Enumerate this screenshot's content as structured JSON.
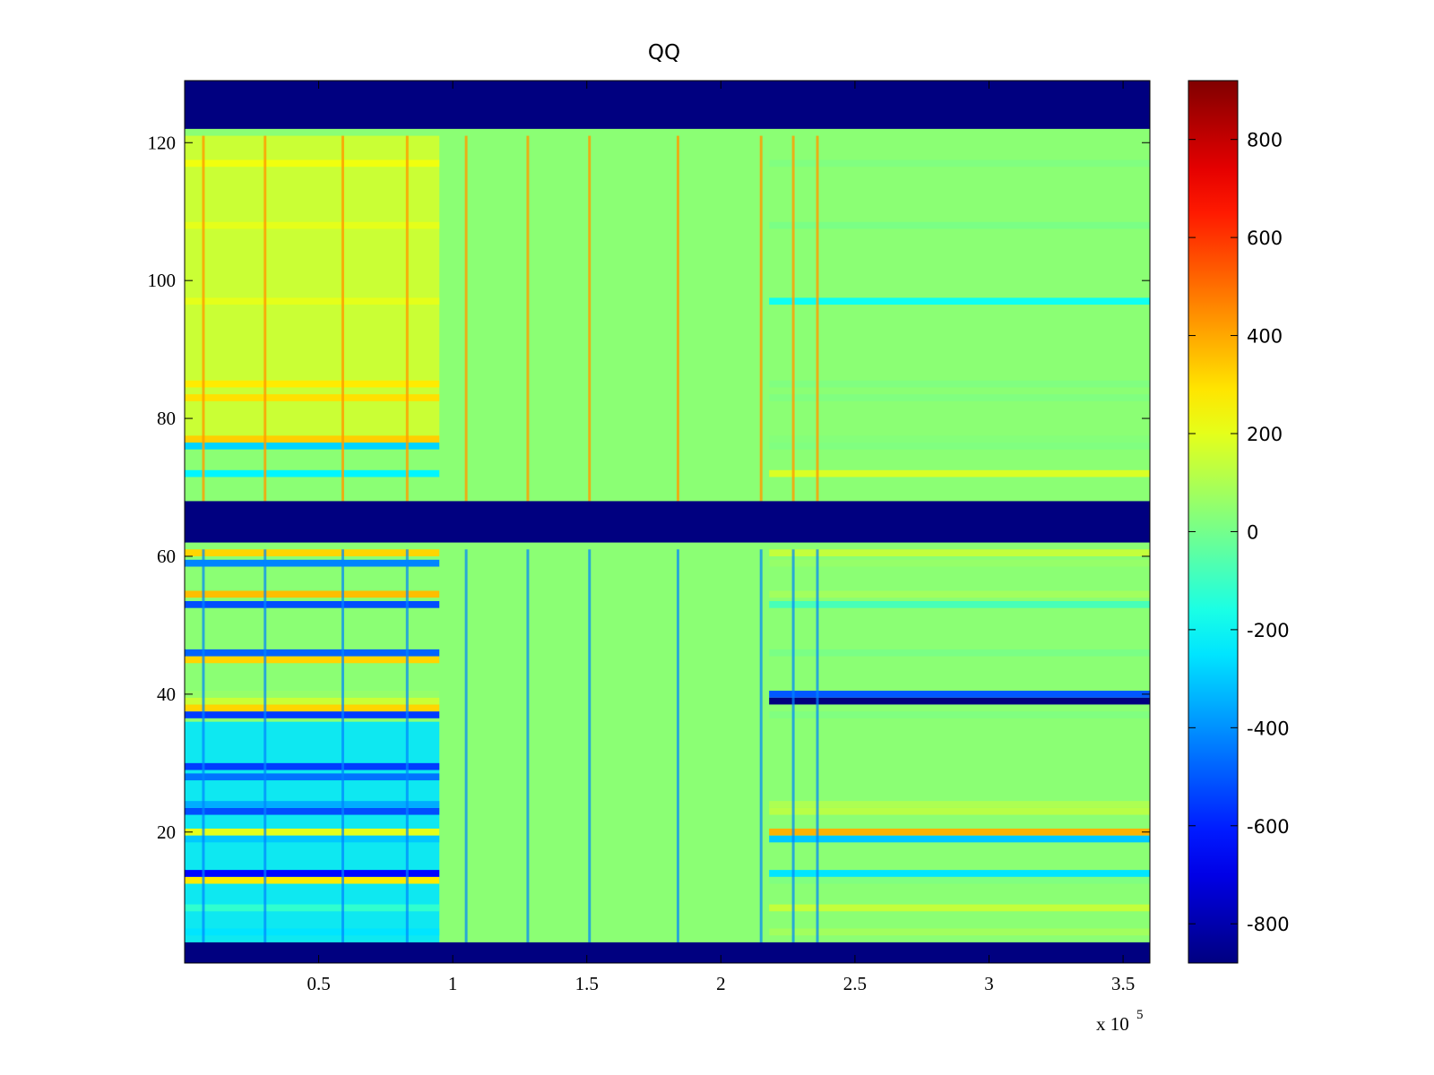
{
  "chart_data": {
    "type": "heatmap",
    "title": "QQ",
    "xlabel": "",
    "ylabel": "",
    "x_multiplier": "x 10",
    "x_multiplier_exponent": "5",
    "xlim": [
      0,
      360000
    ],
    "ylim": [
      1,
      129
    ],
    "x_ticks": [
      50000,
      100000,
      150000,
      200000,
      250000,
      300000,
      350000
    ],
    "x_tick_labels": [
      "0.5",
      "1",
      "1.5",
      "2",
      "2.5",
      "3",
      "3.5"
    ],
    "y_ticks": [
      20,
      40,
      60,
      80,
      100,
      120
    ],
    "y_tick_labels": [
      "20",
      "40",
      "60",
      "80",
      "100",
      "120"
    ],
    "colorbar": {
      "range": [
        -880,
        920
      ],
      "ticks": [
        -800,
        -600,
        -400,
        -200,
        0,
        200,
        400,
        600,
        800
      ],
      "tick_labels": [
        "-800",
        "-600",
        "-400",
        "-200",
        "0",
        "200",
        "400",
        "600",
        "800"
      ],
      "colormap": "jet"
    },
    "regions": {
      "empty_bands_y": [
        [
          1,
          4
        ],
        [
          62,
          68
        ],
        [
          122,
          129
        ]
      ],
      "rows": [
        {
          "y": 5.5,
          "early": -250,
          "late": 80
        },
        {
          "y": 9,
          "early": -120,
          "late": 140
        },
        {
          "y": 13,
          "early": 280,
          "late": 20
        },
        {
          "y": 14,
          "early": -650,
          "late": -250
        },
        {
          "y": 19,
          "early": -300,
          "late": -300
        },
        {
          "y": 20,
          "early": 200,
          "late": 380
        },
        {
          "y": 23,
          "early": -520,
          "late": 120
        },
        {
          "y": 24,
          "early": -350,
          "late": 100
        },
        {
          "y": 28,
          "early": -450,
          "late": 40
        },
        {
          "y": 29.5,
          "early": -550,
          "late": 40
        },
        {
          "y": 37,
          "early": -550,
          "late": 20
        },
        {
          "y": 38,
          "early": 320,
          "late": 40
        },
        {
          "y": 39,
          "early": 150,
          "late": -880
        },
        {
          "y": 40,
          "early": 60,
          "late": -500
        },
        {
          "y": 45,
          "early": 320,
          "late": 40
        },
        {
          "y": 46,
          "early": -480,
          "late": 10
        },
        {
          "y": 53,
          "early": -520,
          "late": -80
        },
        {
          "y": 54.5,
          "early": 360,
          "late": 80
        },
        {
          "y": 59,
          "early": -420,
          "late": 60
        },
        {
          "y": 60.5,
          "early": 320,
          "late": 140
        },
        {
          "y": 72,
          "early": -220,
          "late": 180
        },
        {
          "y": 76,
          "early": -280,
          "late": 20
        },
        {
          "y": 77,
          "early": 330,
          "late": 30
        },
        {
          "y": 83,
          "early": 300,
          "late": 20
        },
        {
          "y": 85,
          "early": 280,
          "late": 20
        },
        {
          "y": 97,
          "early": 200,
          "late": -180
        },
        {
          "y": 108,
          "early": 200,
          "late": 10
        },
        {
          "y": 117,
          "early": 220,
          "late": 20
        }
      ],
      "vertical_streaks_x": [
        7000,
        30000,
        59000,
        83000,
        105000,
        128000,
        151000,
        184000,
        215000,
        227000,
        236000
      ]
    }
  }
}
